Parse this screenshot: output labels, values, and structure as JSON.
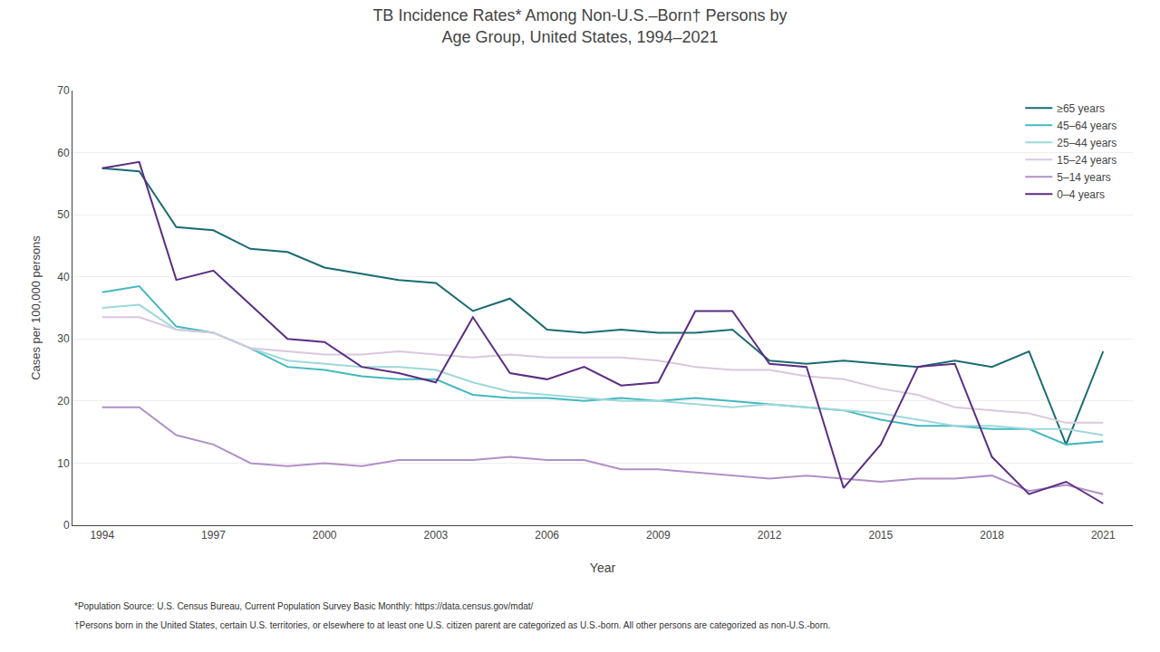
{
  "chart_data": {
    "type": "line",
    "title": "TB Incidence Rates* Among Non-U.S.–Born† Persons by\nAge Group, United States, 1994–2021",
    "xlabel": "Year",
    "ylabel": "Cases per 100,000 persons",
    "annotations": [
      "*Population Source: U.S. Census Bureau, Current Population Survey Basic Monthly: https://data.census.gov/mdat/",
      "†Persons born in the United States, certain U.S. territories, or elsewhere to at least one U.S. citizen parent are categorized as U.S.-born. All other persons are categorized as non-U.S.-born."
    ],
    "x": [
      1994,
      1995,
      1996,
      1997,
      1998,
      1999,
      2000,
      2001,
      2002,
      2003,
      2004,
      2005,
      2006,
      2007,
      2008,
      2009,
      2010,
      2011,
      2012,
      2013,
      2014,
      2015,
      2016,
      2017,
      2018,
      2019,
      2020,
      2021
    ],
    "series": [
      {
        "name": "≥65 years",
        "color": "#1a6b72",
        "values": [
          57.5,
          57.0,
          48.0,
          47.5,
          44.5,
          44.0,
          41.5,
          40.5,
          39.5,
          39.0,
          34.5,
          36.5,
          31.5,
          31.0,
          31.5,
          31.0,
          31.0,
          31.5,
          26.5,
          26.0,
          26.5,
          26.0,
          25.5,
          26.5,
          25.5,
          28.0,
          13.0,
          28.0
        ]
      },
      {
        "name": "45–64 years",
        "color": "#45b8c0",
        "values": [
          37.5,
          38.5,
          32.0,
          31.0,
          28.5,
          25.5,
          25.0,
          24.0,
          23.5,
          23.5,
          21.0,
          20.5,
          20.5,
          20.0,
          20.5,
          20.0,
          20.5,
          20.0,
          19.5,
          19.0,
          18.5,
          17.0,
          16.0,
          16.0,
          15.5,
          15.5,
          13.0,
          13.5
        ]
      },
      {
        "name": "25–44 years",
        "color": "#9ed8db",
        "values": [
          35.0,
          35.5,
          31.5,
          31.0,
          28.5,
          26.5,
          26.0,
          25.5,
          25.5,
          25.0,
          23.0,
          21.5,
          21.0,
          20.5,
          20.0,
          20.0,
          19.5,
          19.0,
          19.5,
          19.0,
          18.5,
          18.0,
          17.0,
          16.0,
          16.0,
          15.5,
          15.5,
          14.5
        ]
      },
      {
        "name": "15–24 years",
        "color": "#d8c8df",
        "values": [
          33.5,
          33.5,
          31.5,
          31.0,
          28.5,
          28.0,
          27.5,
          27.5,
          28.0,
          27.5,
          27.0,
          27.5,
          27.0,
          27.0,
          27.0,
          26.5,
          25.5,
          25.0,
          25.0,
          24.0,
          23.5,
          22.0,
          21.0,
          19.0,
          18.5,
          18.0,
          16.5,
          16.5
        ]
      },
      {
        "name": "5–14 years",
        "color": "#b090c8",
        "values": [
          19.0,
          19.0,
          14.5,
          13.0,
          10.0,
          9.5,
          10.0,
          9.5,
          10.5,
          10.5,
          10.5,
          11.0,
          10.5,
          10.5,
          9.0,
          9.0,
          8.5,
          8.0,
          7.5,
          8.0,
          7.5,
          7.0,
          7.5,
          7.5,
          8.0,
          5.5,
          6.5,
          5.0
        ]
      },
      {
        "name": "0–4 years",
        "color": "#5b2d82",
        "values": [
          57.5,
          58.5,
          39.5,
          41.0,
          35.5,
          30.0,
          29.5,
          25.5,
          24.5,
          23.0,
          33.5,
          24.5,
          23.5,
          25.5,
          22.5,
          23.0,
          34.5,
          34.5,
          26.0,
          25.5,
          6.0,
          13.0,
          25.5,
          26.0,
          11.0,
          5.0,
          7.0,
          3.5
        ]
      }
    ],
    "xlim": [
      1993.2,
      2021.8
    ],
    "xticks": [
      1994,
      1997,
      2000,
      2003,
      2006,
      2009,
      2012,
      2015,
      2018,
      2021
    ],
    "ylim": [
      0,
      70
    ],
    "yticks": [
      0,
      10,
      20,
      30,
      40,
      50,
      60,
      70
    ],
    "grid": true,
    "legend": "upper right"
  }
}
